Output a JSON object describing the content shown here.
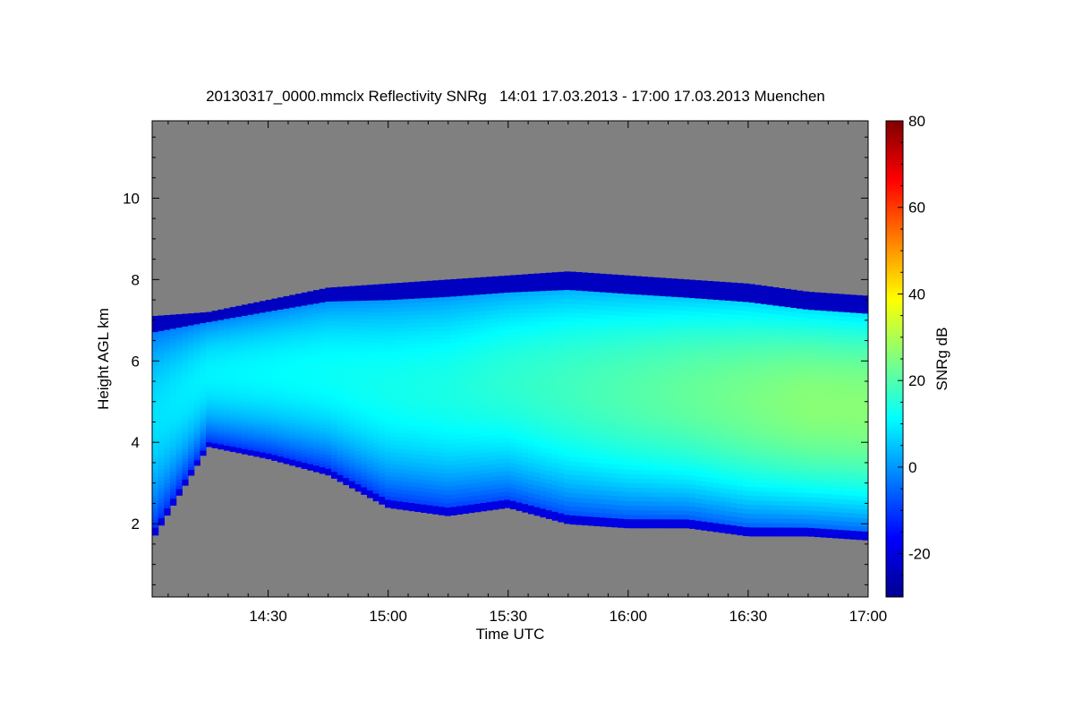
{
  "chart_data": {
    "type": "heatmap",
    "title": "20130317_0000.mmclx Reflectivity SNRg   14:01 17.03.2013 - 17:00 17.03.2013 Muenchen",
    "xlabel": "Time UTC",
    "ylabel": "Height AGL km",
    "colorbar_label": "SNRg dB",
    "x_range": [
      "14:01",
      "17:00"
    ],
    "y_range_km": [
      0.2,
      11.9
    ],
    "color_range_db": [
      -30,
      80
    ],
    "x_ticks": [
      "14:30",
      "15:00",
      "15:30",
      "16:00",
      "16:30",
      "17:00"
    ],
    "y_ticks": [
      "2",
      "4",
      "6",
      "8",
      "10"
    ],
    "colorbar_ticks": [
      "-20",
      "0",
      "20",
      "40",
      "60",
      "80"
    ],
    "echo_layer": {
      "description": "precipitating cloud echo",
      "times": [
        "14:01",
        "14:15",
        "14:30",
        "14:45",
        "15:00",
        "15:15",
        "15:30",
        "15:45",
        "16:00",
        "16:15",
        "16:30",
        "16:45",
        "17:00"
      ],
      "top_km": [
        7.1,
        7.2,
        7.5,
        7.8,
        7.9,
        8.0,
        8.1,
        8.2,
        8.1,
        8.0,
        7.9,
        7.7,
        7.6
      ],
      "base_km": [
        1.6,
        3.9,
        3.6,
        3.2,
        2.4,
        2.2,
        2.4,
        2.0,
        1.9,
        1.9,
        1.7,
        1.7,
        1.6
      ],
      "core_snr_db": [
        8,
        10,
        11,
        12,
        13,
        14,
        16,
        18,
        20,
        22,
        24,
        26,
        26
      ]
    },
    "background_color": "#808080"
  }
}
